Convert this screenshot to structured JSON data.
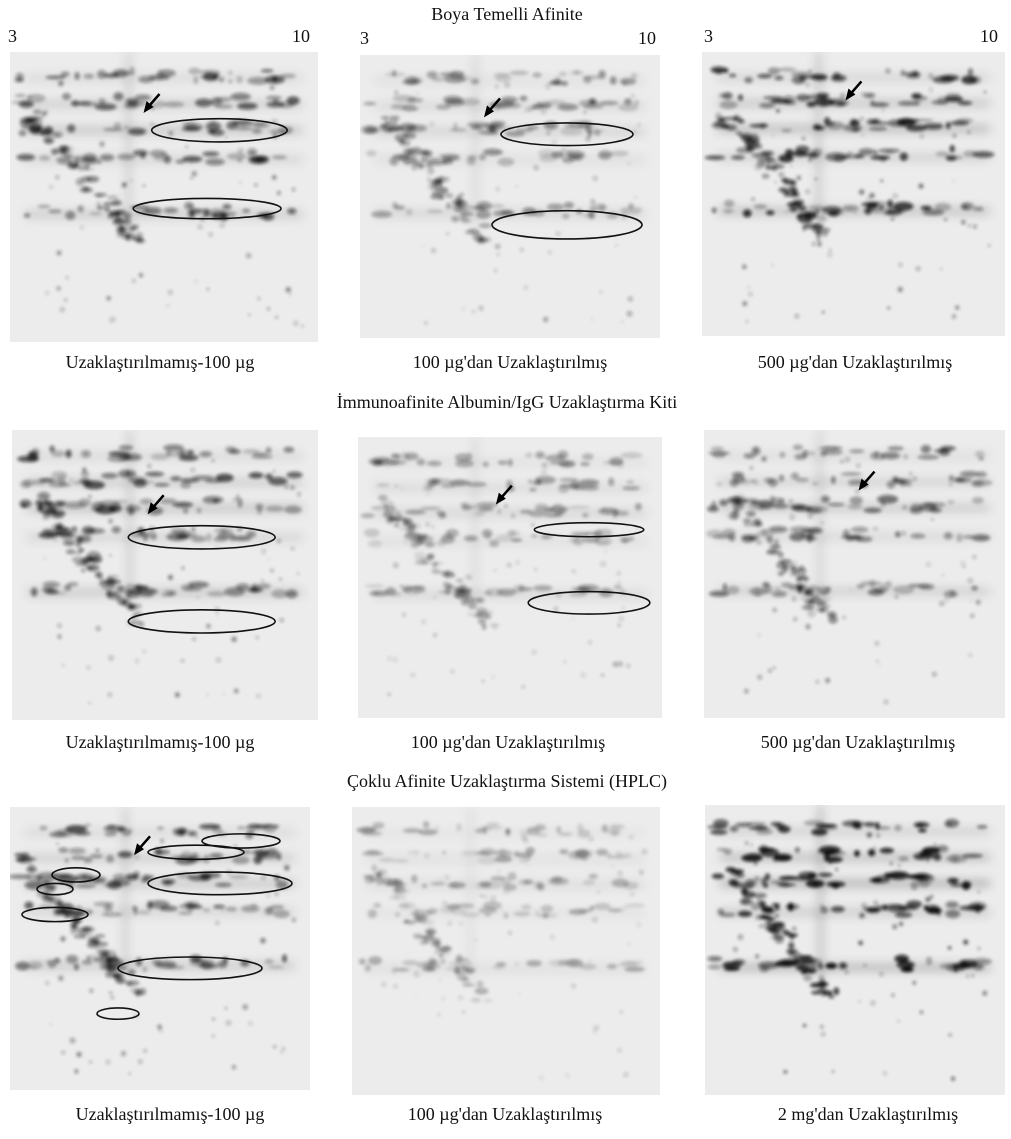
{
  "ph_scale": {
    "start": "3",
    "end": "10"
  },
  "sections": [
    {
      "title": "Boya Temelli Afinite",
      "panels": [
        {
          "caption": "Uzaklaştırılmamış-100 µg"
        },
        {
          "caption": "100 µg'dan Uzaklaştırılmış"
        },
        {
          "caption": "500 µg'dan Uzaklaştırılmış"
        }
      ]
    },
    {
      "title": "İmmunoafinite Albumin/IgG Uzaklaştırma Kiti",
      "panels": [
        {
          "caption": "Uzaklaştırılmamış-100 µg"
        },
        {
          "caption": "100 µg'dan Uzaklaştırılmış"
        },
        {
          "caption": "500 µg'dan Uzaklaştırılmış"
        }
      ]
    },
    {
      "title": "Çoklu Afinite Uzaklaştırma Sistemi (HPLC)",
      "panels": [
        {
          "caption": "Uzaklaştırılmamış-100 µg"
        },
        {
          "caption": "100 µg'dan Uzaklaştırılmış"
        },
        {
          "caption": "2 mg'dan Uzaklaştırılmış"
        }
      ]
    }
  ]
}
